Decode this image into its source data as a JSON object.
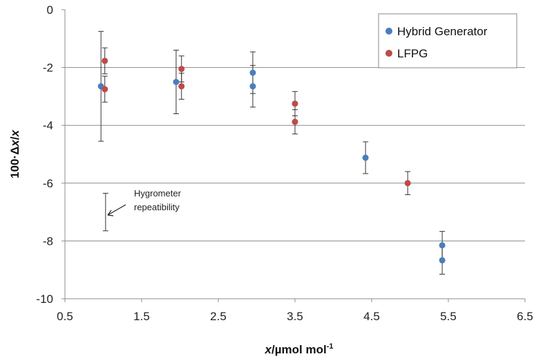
{
  "chart_data": {
    "type": "scatter",
    "xlabel_italic": "x",
    "xlabel_rest": "/µmol mol",
    "xlabel_sup": "-1",
    "ylabel_prefix": "100·Δ",
    "ylabel_italic1": "x",
    "ylabel_slash": "/",
    "ylabel_italic2": "x",
    "xlim": [
      0.5,
      6.5
    ],
    "ylim": [
      -10,
      0
    ],
    "x_ticks": [
      "0.5",
      "1.5",
      "2.5",
      "3.5",
      "4.5",
      "5.5",
      "6.5"
    ],
    "y_ticks": [
      "0",
      "-2",
      "-4",
      "-6",
      "-8",
      "-10"
    ],
    "grid": "horizontal",
    "legend_position": "top-right",
    "series": [
      {
        "name": "Hybrid Generator",
        "color": "#4a7ebb",
        "points": [
          {
            "x": 0.97,
            "y": -2.65,
            "err_low": 1.9,
            "err_high": 1.9
          },
          {
            "x": 1.95,
            "y": -2.5,
            "err_low": 1.1,
            "err_high": 1.1
          },
          {
            "x": 2.95,
            "y": -2.18,
            "err_low": 0.72,
            "err_high": 0.72
          },
          {
            "x": 2.95,
            "y": -2.65,
            "err_low": 0.72,
            "err_high": 0.72
          },
          {
            "x": 4.42,
            "y": -5.12,
            "err_low": 0.55,
            "err_high": 0.55
          },
          {
            "x": 5.42,
            "y": -8.15,
            "err_low": 0.48,
            "err_high": 0.48
          },
          {
            "x": 5.42,
            "y": -8.67,
            "err_low": 0.48,
            "err_high": 0.48
          }
        ]
      },
      {
        "name": "LFPG",
        "color": "#be4b48",
        "points": [
          {
            "x": 1.02,
            "y": -1.77,
            "err_low": 0.45,
            "err_high": 0.45
          },
          {
            "x": 1.02,
            "y": -2.75,
            "err_low": 0.45,
            "err_high": 0.45
          },
          {
            "x": 2.02,
            "y": -2.05,
            "err_low": 0.45,
            "err_high": 0.45
          },
          {
            "x": 2.02,
            "y": -2.65,
            "err_low": 0.45,
            "err_high": 0.45
          },
          {
            "x": 3.5,
            "y": -3.25,
            "err_low": 0.42,
            "err_high": 0.42
          },
          {
            "x": 3.5,
            "y": -3.88,
            "err_low": 0.42,
            "err_high": 0.42
          },
          {
            "x": 4.97,
            "y": -6.0,
            "err_low": 0.4,
            "err_high": 0.4
          }
        ]
      }
    ],
    "annotation": {
      "text_line1": "Hygrometer",
      "text_line2": "repeatibility",
      "x": 1.03,
      "y": -7.0,
      "err_low": 0.65,
      "err_high": 0.65
    }
  }
}
